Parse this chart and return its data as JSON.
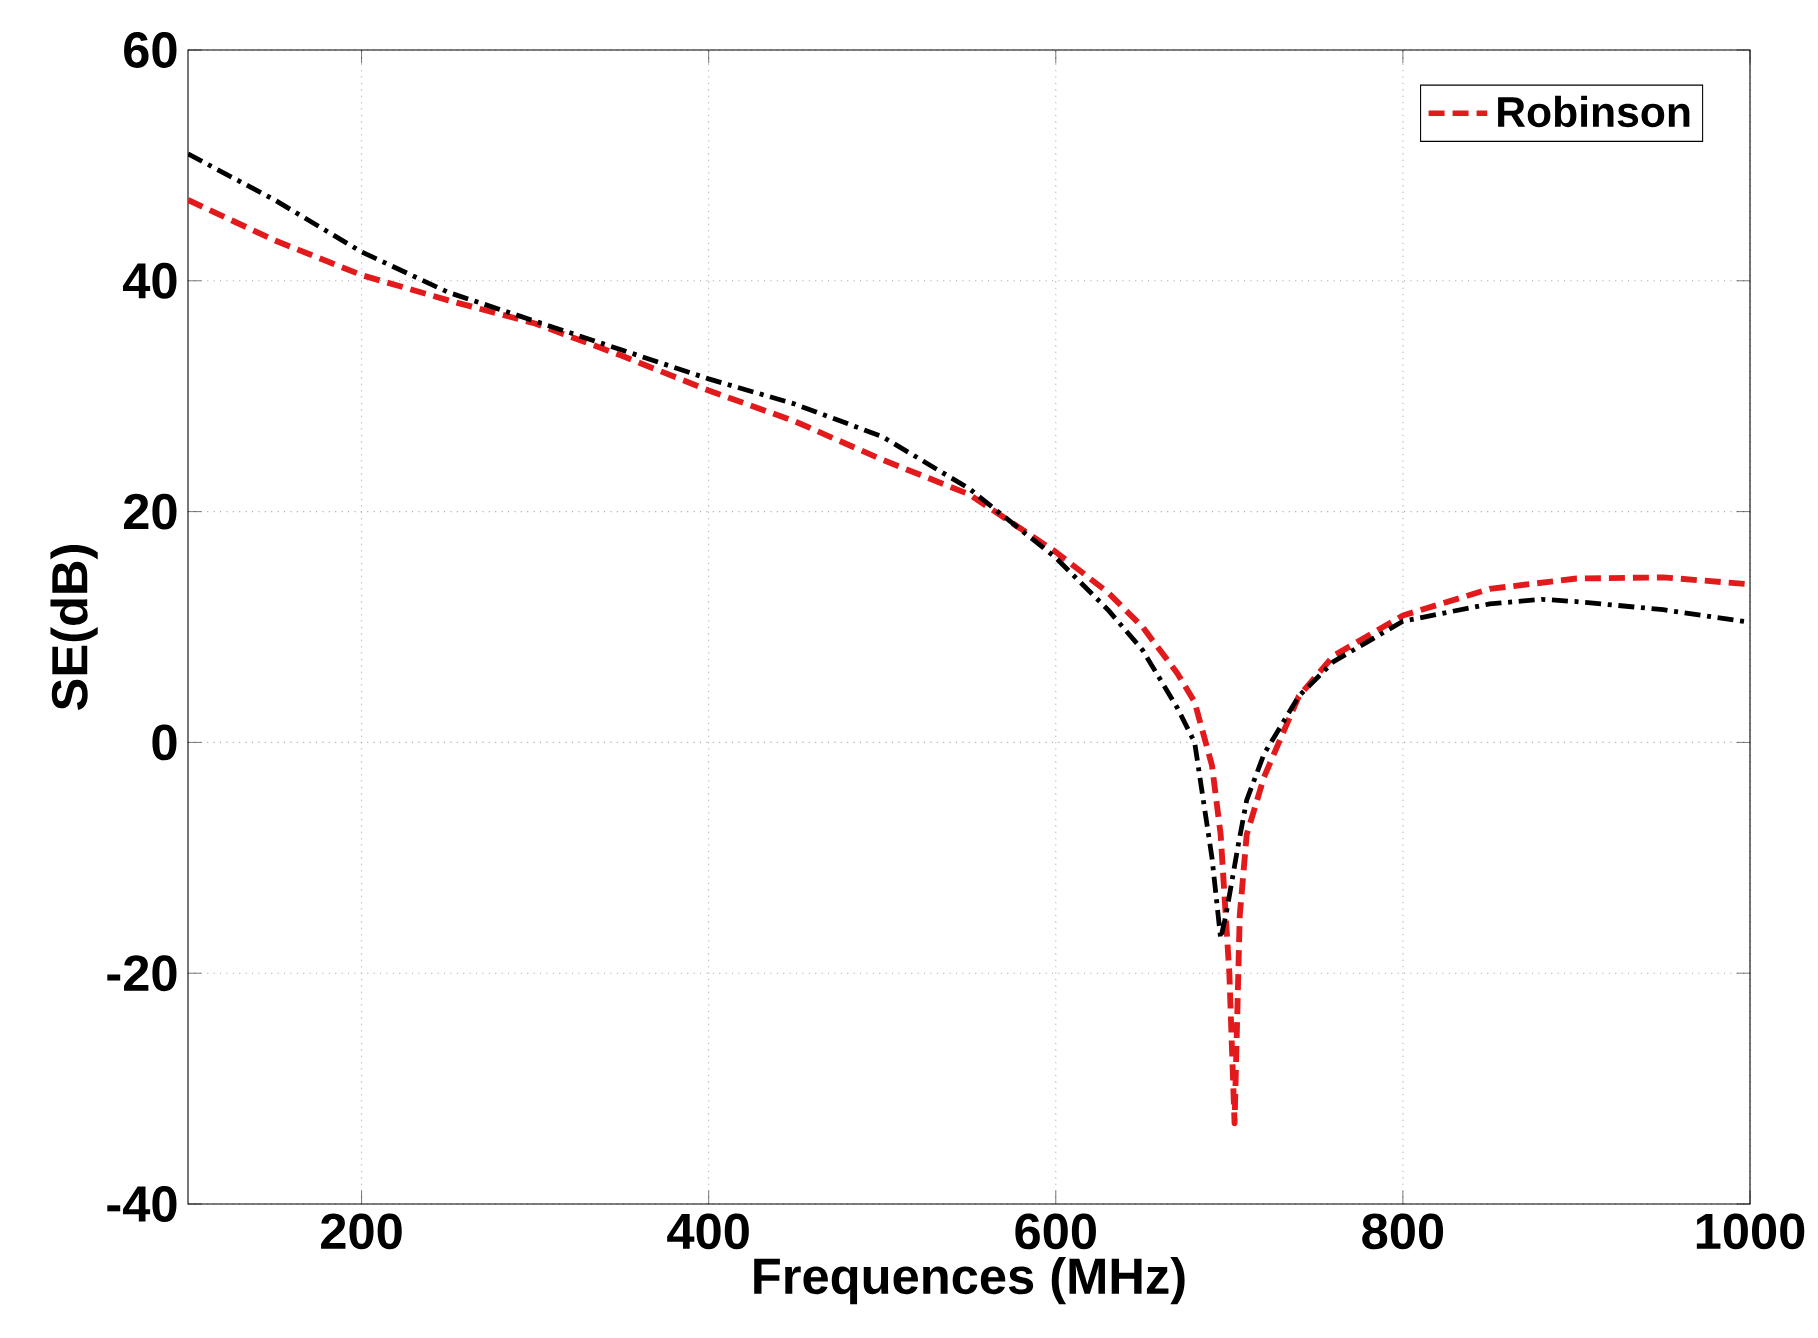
{
  "chart_data": {
    "type": "line",
    "xlabel": "Frequences (MHz)",
    "ylabel": "SE(dB)",
    "xlim": [
      100,
      1000
    ],
    "xticks": [
      200,
      400,
      600,
      800,
      1000
    ],
    "ylim": [
      -40,
      60
    ],
    "yticks": [
      -40,
      -20,
      0,
      20,
      40,
      60
    ],
    "grid": true,
    "legend": "top right",
    "series": [
      {
        "name": "Robinson",
        "color": "#e31a1c",
        "line_style": "dashed",
        "x": [
          100,
          150,
          200,
          250,
          300,
          350,
          400,
          450,
          500,
          550,
          600,
          630,
          650,
          670,
          680,
          690,
          695,
          700,
          703,
          706,
          710,
          720,
          740,
          760,
          800,
          850,
          900,
          950,
          1000
        ],
        "values": [
          47,
          43.5,
          40.5,
          38.3,
          36.3,
          33.5,
          30.5,
          27.8,
          24.5,
          21.5,
          16.5,
          13,
          10,
          6,
          3.5,
          -2,
          -8,
          -20,
          -33,
          -15,
          -8,
          -3,
          4,
          7.5,
          11,
          13.3,
          14.2,
          14.3,
          13.7
        ]
      },
      {
        "color": "#000000",
        "line_style": "dashdotted",
        "x": [
          100,
          150,
          200,
          250,
          300,
          350,
          400,
          450,
          500,
          550,
          600,
          630,
          650,
          670,
          680,
          690,
          695,
          698,
          705,
          710,
          720,
          740,
          760,
          800,
          850,
          880,
          900,
          950,
          1000
        ],
        "values": [
          51,
          47,
          42.5,
          39,
          36.5,
          34,
          31.5,
          29.3,
          26.5,
          22,
          16,
          11.5,
          8,
          3,
          0,
          -10,
          -17,
          -15,
          -9,
          -5,
          -1,
          4,
          7,
          10.5,
          12,
          12.4,
          12.2,
          11.5,
          10.4
        ]
      }
    ]
  }
}
